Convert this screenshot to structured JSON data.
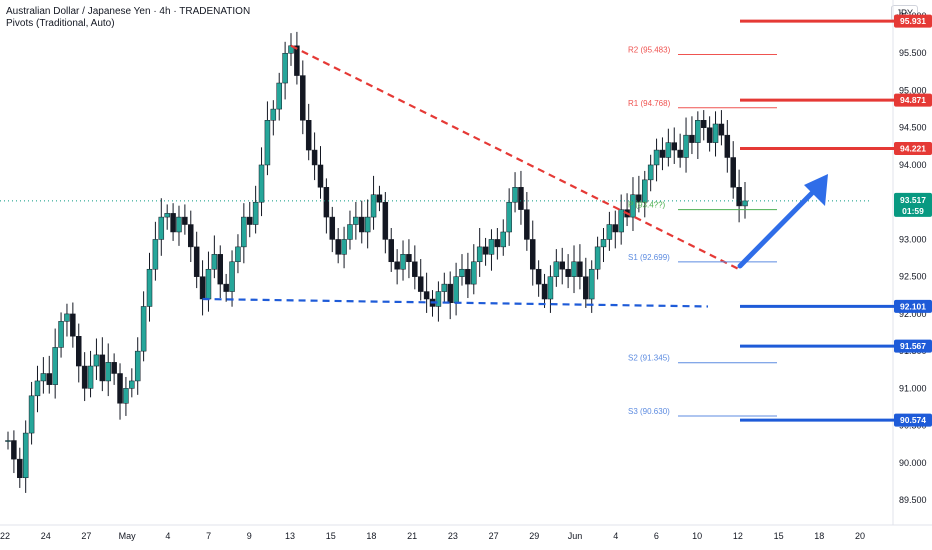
{
  "header": {
    "title": "Australian Dollar / Japanese Yen · 4h · TRADENATION",
    "indicator": "Pivots (Traditional, Auto)",
    "currency": "JPY"
  },
  "colors": {
    "bull": "#26a69a",
    "bear": "#ef5350",
    "candle": "#131722",
    "resistance": "#e53935",
    "support": "#1e5bd8",
    "pivot_r": "#ef5350",
    "pivot_s": "#5c8be0",
    "pivot_p": "#4caf50",
    "current": "#089981",
    "arrow": "#2f6de8"
  },
  "chart_data": {
    "type": "candlestick",
    "symbol": "AUDJPY",
    "timeframe": "4h",
    "ylim": [
      89.3,
      96.0
    ],
    "y_ticks": [
      "96.000",
      "95.500",
      "95.000",
      "94.500",
      "94.000",
      "93.500",
      "93.000",
      "92.500",
      "92.000",
      "91.500",
      "91.000",
      "90.500",
      "90.000",
      "89.500"
    ],
    "x_ticks": [
      "22",
      "24",
      "27",
      "May",
      "4",
      "7",
      "9",
      "13",
      "15",
      "18",
      "21",
      "23",
      "27",
      "29",
      "Jun",
      "4",
      "6",
      "10",
      "12",
      "15",
      "18",
      "20"
    ],
    "close_path": [
      {
        "t": 0,
        "v": 90.3
      },
      {
        "t": 0.5,
        "v": 90.05
      },
      {
        "t": 1,
        "v": 89.8
      },
      {
        "t": 1.5,
        "v": 90.4
      },
      {
        "t": 2,
        "v": 90.9
      },
      {
        "t": 2.5,
        "v": 91.1
      },
      {
        "t": 3,
        "v": 91.2
      },
      {
        "t": 3.5,
        "v": 91.05
      },
      {
        "t": 4,
        "v": 91.55
      },
      {
        "t": 4.5,
        "v": 91.9
      },
      {
        "t": 5,
        "v": 92.0
      },
      {
        "t": 5.5,
        "v": 91.7
      },
      {
        "t": 6,
        "v": 91.3
      },
      {
        "t": 6.5,
        "v": 91.0
      },
      {
        "t": 7,
        "v": 91.3
      },
      {
        "t": 7.5,
        "v": 91.45
      },
      {
        "t": 8,
        "v": 91.1
      },
      {
        "t": 8.5,
        "v": 91.35
      },
      {
        "t": 9,
        "v": 91.2
      },
      {
        "t": 9.5,
        "v": 90.8
      },
      {
        "t": 10,
        "v": 91.0
      },
      {
        "t": 10.5,
        "v": 91.1
      },
      {
        "t": 11,
        "v": 91.5
      },
      {
        "t": 11.5,
        "v": 92.1
      },
      {
        "t": 12,
        "v": 92.6
      },
      {
        "t": 12.5,
        "v": 93.0
      },
      {
        "t": 13,
        "v": 93.3
      },
      {
        "t": 13.5,
        "v": 93.35
      },
      {
        "t": 14,
        "v": 93.1
      },
      {
        "t": 14.5,
        "v": 93.3
      },
      {
        "t": 15,
        "v": 93.2
      },
      {
        "t": 15.5,
        "v": 92.9
      },
      {
        "t": 16,
        "v": 92.5
      },
      {
        "t": 16.5,
        "v": 92.2
      },
      {
        "t": 17,
        "v": 92.6
      },
      {
        "t": 17.5,
        "v": 92.8
      },
      {
        "t": 18,
        "v": 92.4
      },
      {
        "t": 18.5,
        "v": 92.3
      },
      {
        "t": 19,
        "v": 92.7
      },
      {
        "t": 19.5,
        "v": 92.9
      },
      {
        "t": 20,
        "v": 93.3
      },
      {
        "t": 20.5,
        "v": 93.2
      },
      {
        "t": 21,
        "v": 93.5
      },
      {
        "t": 21.5,
        "v": 94.0
      },
      {
        "t": 22,
        "v": 94.6
      },
      {
        "t": 22.5,
        "v": 94.75
      },
      {
        "t": 23,
        "v": 95.1
      },
      {
        "t": 23.5,
        "v": 95.5
      },
      {
        "t": 24,
        "v": 95.6
      },
      {
        "t": 24.5,
        "v": 95.2
      },
      {
        "t": 25,
        "v": 94.6
      },
      {
        "t": 25.5,
        "v": 94.2
      },
      {
        "t": 26,
        "v": 94.0
      },
      {
        "t": 26.5,
        "v": 93.7
      },
      {
        "t": 27,
        "v": 93.3
      },
      {
        "t": 27.5,
        "v": 93.0
      },
      {
        "t": 28,
        "v": 92.8
      },
      {
        "t": 28.5,
        "v": 93.0
      },
      {
        "t": 29,
        "v": 93.2
      },
      {
        "t": 29.5,
        "v": 93.3
      },
      {
        "t": 30,
        "v": 93.1
      },
      {
        "t": 30.5,
        "v": 93.3
      },
      {
        "t": 31,
        "v": 93.6
      },
      {
        "t": 31.5,
        "v": 93.5
      },
      {
        "t": 32,
        "v": 93.0
      },
      {
        "t": 32.5,
        "v": 92.7
      },
      {
        "t": 33,
        "v": 92.6
      },
      {
        "t": 33.5,
        "v": 92.8
      },
      {
        "t": 34,
        "v": 92.7
      },
      {
        "t": 34.5,
        "v": 92.5
      },
      {
        "t": 35,
        "v": 92.3
      },
      {
        "t": 35.5,
        "v": 92.2
      },
      {
        "t": 36,
        "v": 92.1
      },
      {
        "t": 36.5,
        "v": 92.3
      },
      {
        "t": 37,
        "v": 92.4
      },
      {
        "t": 37.5,
        "v": 92.15
      },
      {
        "t": 38,
        "v": 92.5
      },
      {
        "t": 38.5,
        "v": 92.6
      },
      {
        "t": 39,
        "v": 92.4
      },
      {
        "t": 39.5,
        "v": 92.7
      },
      {
        "t": 40,
        "v": 92.9
      },
      {
        "t": 40.5,
        "v": 92.8
      },
      {
        "t": 41,
        "v": 93.0
      },
      {
        "t": 41.5,
        "v": 92.9
      },
      {
        "t": 42,
        "v": 93.1
      },
      {
        "t": 42.5,
        "v": 93.5
      },
      {
        "t": 43,
        "v": 93.7
      },
      {
        "t": 43.5,
        "v": 93.4
      },
      {
        "t": 44,
        "v": 93.0
      },
      {
        "t": 44.5,
        "v": 92.6
      },
      {
        "t": 45,
        "v": 92.4
      },
      {
        "t": 45.5,
        "v": 92.2
      },
      {
        "t": 46,
        "v": 92.5
      },
      {
        "t": 46.5,
        "v": 92.7
      },
      {
        "t": 47,
        "v": 92.6
      },
      {
        "t": 47.5,
        "v": 92.5
      },
      {
        "t": 48,
        "v": 92.7
      },
      {
        "t": 48.5,
        "v": 92.5
      },
      {
        "t": 49,
        "v": 92.2
      },
      {
        "t": 49.5,
        "v": 92.6
      },
      {
        "t": 50,
        "v": 92.9
      },
      {
        "t": 50.5,
        "v": 93.0
      },
      {
        "t": 51,
        "v": 93.2
      },
      {
        "t": 51.5,
        "v": 93.1
      },
      {
        "t": 52,
        "v": 93.4
      },
      {
        "t": 52.5,
        "v": 93.3
      },
      {
        "t": 53,
        "v": 93.6
      },
      {
        "t": 53.5,
        "v": 93.5
      },
      {
        "t": 54,
        "v": 93.8
      },
      {
        "t": 54.5,
        "v": 94.0
      },
      {
        "t": 55,
        "v": 94.2
      },
      {
        "t": 55.5,
        "v": 94.1
      },
      {
        "t": 56,
        "v": 94.3
      },
      {
        "t": 56.5,
        "v": 94.2
      },
      {
        "t": 57,
        "v": 94.1
      },
      {
        "t": 57.5,
        "v": 94.4
      },
      {
        "t": 58,
        "v": 94.3
      },
      {
        "t": 58.5,
        "v": 94.6
      },
      {
        "t": 59,
        "v": 94.5
      },
      {
        "t": 59.5,
        "v": 94.3
      },
      {
        "t": 60,
        "v": 94.55
      },
      {
        "t": 60.5,
        "v": 94.4
      },
      {
        "t": 61,
        "v": 94.1
      },
      {
        "t": 61.5,
        "v": 93.7
      },
      {
        "t": 62,
        "v": 93.45
      },
      {
        "t": 62.5,
        "v": 93.517
      }
    ],
    "levels": {
      "resistance": [
        95.931,
        94.871,
        94.221
      ],
      "support": [
        92.101,
        91.567,
        90.574
      ]
    },
    "pivots": [
      {
        "name": "R2",
        "value": 95.483,
        "label": "R2 (95.483)"
      },
      {
        "name": "R1",
        "value": 94.768,
        "label": "R1 (94.768)"
      },
      {
        "name": "P",
        "value": 93.4,
        "label": "P (93.4??)"
      },
      {
        "name": "S1",
        "value": 92.699,
        "label": "S1 (92.699)"
      },
      {
        "name": "S2",
        "value": 91.345,
        "label": "S2 (91.345)"
      },
      {
        "name": "S3",
        "value": 90.63,
        "label": "S3 (90.630)"
      }
    ],
    "current": {
      "price": "93.517",
      "countdown": "01:59",
      "value": 93.517
    },
    "tags": [
      "95.931",
      "94.871",
      "94.221",
      "92.101",
      "91.567",
      "90.574"
    ]
  }
}
